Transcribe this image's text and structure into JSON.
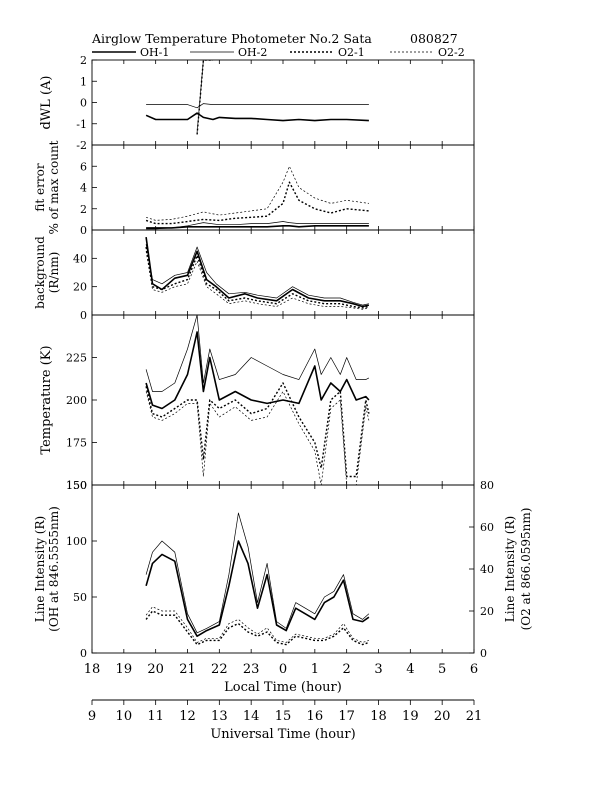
{
  "header": {
    "title": "Airglow Temperature Photometer No.2  Sata",
    "date": "080827"
  },
  "legend": {
    "entries": [
      {
        "name": "OH-1",
        "style": "thick-solid"
      },
      {
        "name": "OH-2",
        "style": "thin-solid"
      },
      {
        "name": "O2-1",
        "style": "thick-dotted"
      },
      {
        "name": "O2-2",
        "style": "thin-dotted"
      }
    ]
  },
  "chart_data": [
    {
      "type": "line",
      "ylabel": [
        "dWL (A)"
      ],
      "ylim": [
        -2,
        2
      ],
      "yticks": [
        "-2",
        "-1",
        "0",
        "1",
        "2"
      ],
      "x": [
        10.7,
        11.0,
        11.5,
        12.0,
        12.3,
        12.5,
        12.8,
        13.0,
        13.5,
        14.0,
        14.5,
        15.0,
        15.5,
        16.0,
        16.5,
        17.0,
        17.7
      ],
      "series": [
        {
          "name": "OH-1",
          "values": [
            -0.6,
            -0.8,
            -0.8,
            -0.8,
            -0.5,
            -0.7,
            -0.8,
            -0.7,
            -0.75,
            -0.75,
            -0.8,
            -0.85,
            -0.8,
            -0.85,
            -0.8,
            -0.8,
            -0.85
          ]
        },
        {
          "name": "OH-2",
          "values": [
            -0.1,
            -0.1,
            -0.1,
            -0.1,
            -0.25,
            -0.05,
            -0.1,
            -0.1,
            -0.1,
            -0.1,
            -0.1,
            -0.1,
            -0.1,
            -0.1,
            -0.1,
            -0.1,
            -0.1
          ]
        },
        {
          "name": "O2-1",
          "values": [
            null,
            null,
            null,
            null,
            -1.5,
            2,
            2,
            null,
            null,
            null,
            null,
            null,
            null,
            null,
            null,
            null,
            null
          ]
        },
        {
          "name": "O2-2",
          "values": [
            null,
            null,
            null,
            null,
            -1.4,
            2,
            2,
            null,
            null,
            null,
            null,
            null,
            null,
            null,
            null,
            null,
            null
          ]
        }
      ]
    },
    {
      "type": "line",
      "ylabel": [
        "fit error",
        "% of max count"
      ],
      "ylim": [
        0,
        8
      ],
      "yticks": [
        "0",
        "2",
        "4",
        "6"
      ],
      "x": [
        10.7,
        11.0,
        11.5,
        12.0,
        12.5,
        13.0,
        13.5,
        14.0,
        14.5,
        15.0,
        15.2,
        15.5,
        16.0,
        16.5,
        17.0,
        17.7
      ],
      "series": [
        {
          "name": "OH-1",
          "values": [
            0.2,
            0.2,
            0.2,
            0.3,
            0.3,
            0.3,
            0.3,
            0.3,
            0.3,
            0.4,
            0.4,
            0.3,
            0.4,
            0.4,
            0.4,
            0.4
          ]
        },
        {
          "name": "OH-2",
          "values": [
            0.1,
            0.1,
            0.2,
            0.4,
            0.7,
            0.5,
            0.5,
            0.6,
            0.6,
            0.8,
            0.7,
            0.6,
            0.6,
            0.6,
            0.6,
            0.6
          ]
        },
        {
          "name": "O2-1",
          "values": [
            0.9,
            0.6,
            0.6,
            0.8,
            1.0,
            0.9,
            1.1,
            1.2,
            1.3,
            2.5,
            4.5,
            2.8,
            2.0,
            1.6,
            2.0,
            1.8
          ]
        },
        {
          "name": "O2-2",
          "values": [
            1.2,
            0.9,
            1.0,
            1.3,
            1.7,
            1.4,
            1.6,
            1.8,
            2.0,
            4.5,
            6.0,
            4.0,
            3.0,
            2.5,
            2.8,
            2.5
          ]
        }
      ]
    },
    {
      "type": "line",
      "ylabel": [
        "background",
        "(R/nm)"
      ],
      "ylim": [
        0,
        60
      ],
      "yticks": [
        "0",
        "20",
        "40"
      ],
      "x": [
        10.7,
        10.9,
        11.2,
        11.6,
        12.0,
        12.3,
        12.6,
        12.9,
        13.3,
        13.8,
        14.2,
        14.8,
        15.3,
        15.8,
        16.3,
        16.8,
        17.2,
        17.5,
        17.7
      ],
      "series": [
        {
          "name": "OH-1",
          "values": [
            55,
            22,
            18,
            26,
            28,
            45,
            25,
            20,
            12,
            15,
            12,
            10,
            18,
            12,
            10,
            10,
            8,
            6,
            7
          ]
        },
        {
          "name": "OH-2",
          "values": [
            50,
            25,
            22,
            28,
            30,
            48,
            30,
            22,
            15,
            16,
            14,
            12,
            20,
            14,
            12,
            12,
            9,
            7,
            8
          ]
        },
        {
          "name": "O2-1",
          "values": [
            48,
            20,
            18,
            22,
            25,
            42,
            22,
            18,
            10,
            12,
            10,
            8,
            15,
            10,
            8,
            8,
            6,
            5,
            6
          ]
        },
        {
          "name": "O2-2",
          "values": [
            45,
            18,
            16,
            20,
            22,
            38,
            20,
            15,
            8,
            10,
            8,
            6,
            12,
            8,
            6,
            6,
            5,
            4,
            5
          ]
        }
      ]
    },
    {
      "type": "line",
      "ylabel": [
        "Temperature (K)"
      ],
      "ylim": [
        150,
        250
      ],
      "yticks": [
        "150",
        "175",
        "200",
        "225"
      ],
      "x": [
        10.7,
        10.9,
        11.2,
        11.6,
        12.0,
        12.3,
        12.5,
        12.7,
        13.0,
        13.5,
        14.0,
        14.5,
        15.0,
        15.5,
        16.0,
        16.2,
        16.5,
        16.8,
        17.0,
        17.3,
        17.6,
        17.7
      ],
      "series": [
        {
          "name": "OH-1",
          "values": [
            210,
            197,
            195,
            200,
            215,
            240,
            205,
            225,
            200,
            205,
            200,
            198,
            200,
            198,
            220,
            200,
            210,
            205,
            212,
            200,
            202,
            200
          ]
        },
        {
          "name": "OH-2",
          "values": [
            218,
            205,
            205,
            210,
            230,
            250,
            210,
            230,
            212,
            215,
            225,
            220,
            215,
            212,
            230,
            215,
            225,
            215,
            225,
            212,
            212,
            213
          ]
        },
        {
          "name": "O2-1",
          "values": [
            208,
            192,
            190,
            195,
            200,
            200,
            165,
            200,
            195,
            200,
            192,
            195,
            210,
            190,
            175,
            160,
            200,
            205,
            155,
            155,
            200,
            192
          ]
        },
        {
          "name": "O2-2",
          "values": [
            205,
            190,
            188,
            192,
            198,
            198,
            155,
            198,
            190,
            196,
            188,
            190,
            205,
            186,
            170,
            150,
            195,
            200,
            150,
            150,
            196,
            188
          ]
        }
      ]
    },
    {
      "type": "line",
      "ylabel": [
        "Line Intensity (R)",
        "(OH at 846.5555nm)"
      ],
      "ylim": [
        0,
        150
      ],
      "yticks": [
        "0",
        "50",
        "100",
        "150"
      ],
      "ylabel_right": [
        "Line Intensity (R)",
        "(O2 at 866.0595nm)"
      ],
      "ylim_right": [
        0,
        80
      ],
      "yticks_right": [
        "0",
        "20",
        "40",
        "60",
        "80"
      ],
      "x": [
        10.7,
        10.9,
        11.2,
        11.6,
        12.0,
        12.3,
        12.6,
        13.0,
        13.3,
        13.6,
        13.9,
        14.2,
        14.5,
        14.8,
        15.1,
        15.4,
        15.7,
        16.0,
        16.3,
        16.6,
        16.9,
        17.2,
        17.5,
        17.7
      ],
      "series": [
        {
          "name": "OH-1",
          "values": [
            60,
            80,
            88,
            82,
            30,
            15,
            20,
            25,
            60,
            100,
            80,
            40,
            70,
            25,
            20,
            40,
            35,
            30,
            45,
            50,
            65,
            30,
            28,
            32
          ]
        },
        {
          "name": "OH-2",
          "values": [
            70,
            90,
            100,
            90,
            35,
            18,
            22,
            28,
            70,
            125,
            95,
            45,
            80,
            28,
            22,
            45,
            40,
            35,
            50,
            55,
            70,
            35,
            30,
            35
          ]
        },
        {
          "name": "O2-1",
          "values": [
            16,
            20,
            18,
            18,
            10,
            4,
            6,
            6,
            12,
            14,
            10,
            8,
            10,
            5,
            4,
            8,
            7,
            6,
            6,
            8,
            12,
            6,
            4,
            5
          ]
        },
        {
          "name": "O2-2",
          "values": [
            18,
            22,
            20,
            20,
            12,
            5,
            7,
            7,
            14,
            16,
            12,
            9,
            12,
            6,
            5,
            9,
            8,
            7,
            7,
            9,
            14,
            7,
            5,
            6
          ]
        }
      ]
    }
  ],
  "local_axis": {
    "label": "Local Time (hour)",
    "ticks": [
      "18",
      "19",
      "20",
      "21",
      "22",
      "23",
      "0",
      "1",
      "2",
      "3",
      "4",
      "5",
      "6"
    ]
  },
  "ut_axis": {
    "label": "Universal Time (hour)",
    "ticks": [
      "9",
      "10",
      "11",
      "12",
      "13",
      "14",
      "15",
      "16",
      "17",
      "18",
      "19",
      "20",
      "21"
    ]
  }
}
